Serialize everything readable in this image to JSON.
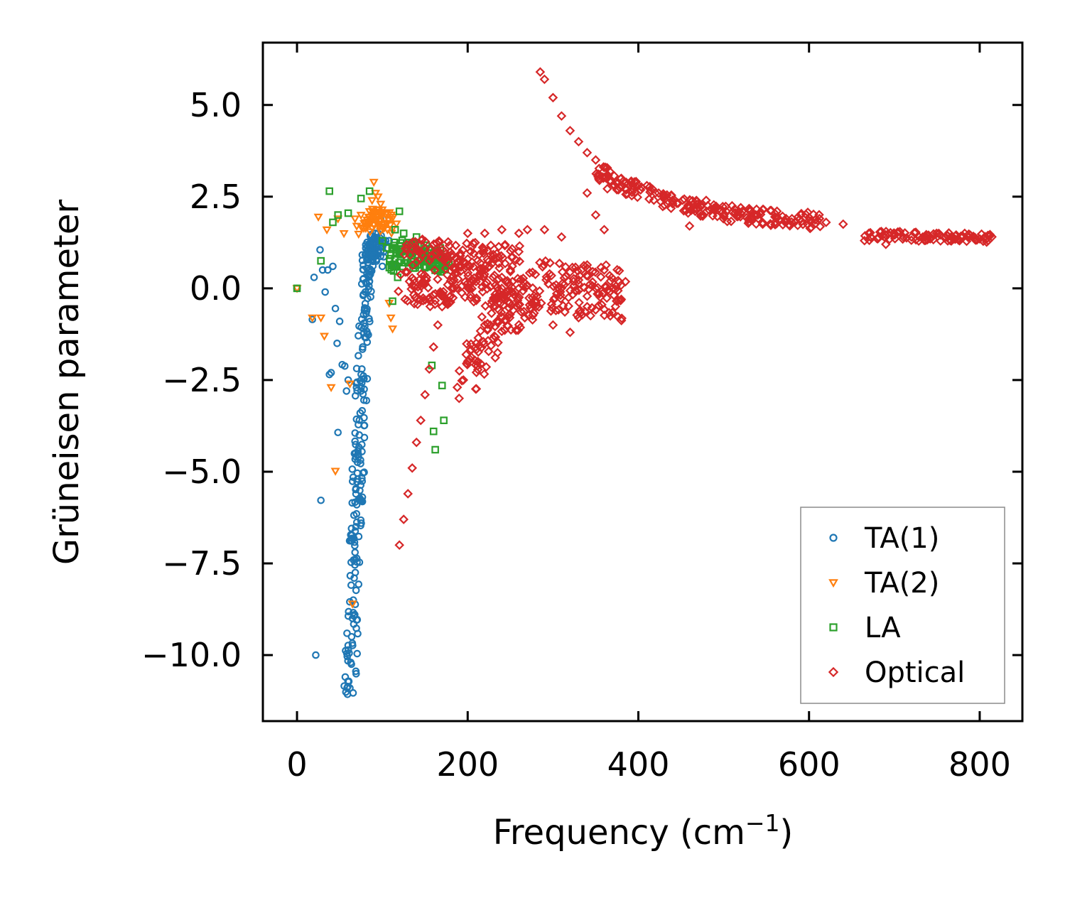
{
  "chart_data": {
    "type": "scatter",
    "title": "",
    "xlabel": "Frequency (cm",
    "xlabel_sup": "−1",
    "xlabel_end": ")",
    "ylabel": "Grüneisen parameter",
    "xlim": [
      -40,
      850
    ],
    "ylim": [
      -11.8,
      6.7
    ],
    "xticks": [
      0,
      200,
      400,
      600,
      800
    ],
    "xtick_labels": [
      "0",
      "200",
      "400",
      "600",
      "800"
    ],
    "yticks": [
      5.0,
      2.5,
      0.0,
      -2.5,
      -5.0,
      -7.5,
      -10.0
    ],
    "ytick_labels": [
      "5.0",
      "2.5",
      "0.0",
      "−2.5",
      "−5.0",
      "−7.5",
      "−10.0"
    ],
    "grid": false,
    "legend_position": "bottom-right",
    "series": [
      {
        "name": "TA(1)",
        "marker": "circle",
        "color": "#1f77b4",
        "points": [
          [
            0,
            0
          ],
          [
            18,
            -0.85
          ],
          [
            20,
            0.3
          ],
          [
            22,
            -10
          ],
          [
            27,
            1.05
          ],
          [
            28,
            -5.78
          ],
          [
            30,
            0.5
          ],
          [
            33,
            -0.1
          ],
          [
            36,
            0.5
          ],
          [
            38,
            -2.35
          ],
          [
            40,
            -2.3
          ],
          [
            42,
            0.6
          ],
          [
            45,
            -0.55
          ],
          [
            47,
            -1.5
          ],
          [
            48,
            -3.93
          ],
          [
            50,
            -0.9
          ],
          [
            53,
            -2.08
          ],
          [
            56,
            -2.12
          ],
          [
            58,
            -2.8
          ],
          [
            60,
            -2.5
          ],
          [
            62,
            -10.9
          ],
          [
            63,
            -10.2
          ],
          [
            64,
            -9.5
          ],
          [
            65,
            -9.0
          ],
          [
            66,
            -8.5
          ],
          [
            67,
            -7.9
          ],
          [
            68,
            -7.2
          ],
          [
            69,
            -6.5
          ],
          [
            70,
            -5.9
          ],
          [
            71,
            -5.2
          ],
          [
            72,
            -4.6
          ],
          [
            73,
            -4.0
          ],
          [
            74,
            -3.4
          ],
          [
            75,
            -2.8
          ],
          [
            76,
            -2.2
          ],
          [
            77,
            -1.6
          ],
          [
            78,
            -1.1
          ],
          [
            79,
            -0.6
          ],
          [
            80,
            -0.1
          ],
          [
            82,
            0.4
          ],
          [
            84,
            0.8
          ],
          [
            86,
            1.0
          ],
          [
            88,
            1.0
          ],
          [
            90,
            0.9
          ],
          [
            92,
            1.5
          ],
          [
            95,
            1.5
          ],
          [
            98,
            1.9
          ],
          [
            100,
            0.6
          ],
          [
            104,
            1.3
          ],
          [
            108,
            1.3
          ],
          [
            112,
            0.6
          ]
        ]
      },
      {
        "name": "TA(2)",
        "marker": "triangle_down",
        "color": "#ff7f0e",
        "points": [
          [
            0,
            0
          ],
          [
            18,
            -0.8
          ],
          [
            25,
            1.95
          ],
          [
            28,
            -0.8
          ],
          [
            32,
            -1.3
          ],
          [
            35,
            1.6
          ],
          [
            40,
            -2.7
          ],
          [
            45,
            -4.98
          ],
          [
            48,
            1.9
          ],
          [
            55,
            1.5
          ],
          [
            62,
            -2.6
          ],
          [
            65,
            -8.6
          ],
          [
            68,
            1.9
          ],
          [
            70,
            1.7
          ],
          [
            75,
            2.0
          ],
          [
            80,
            1.8
          ],
          [
            85,
            2.1
          ],
          [
            88,
            2.4
          ],
          [
            90,
            2.9
          ],
          [
            92,
            2.6
          ],
          [
            95,
            2.5
          ],
          [
            98,
            2.3
          ],
          [
            100,
            2.0
          ],
          [
            103,
            1.9
          ],
          [
            106,
            1.6
          ],
          [
            108,
            -0.4
          ],
          [
            110,
            -0.8
          ],
          [
            112,
            -1.1
          ]
        ]
      },
      {
        "name": "LA",
        "marker": "square",
        "color": "#2ca02c",
        "points": [
          [
            0,
            0
          ],
          [
            28,
            0.75
          ],
          [
            38,
            2.65
          ],
          [
            42,
            1.8
          ],
          [
            48,
            2.0
          ],
          [
            60,
            2.05
          ],
          [
            75,
            2.45
          ],
          [
            85,
            2.65
          ],
          [
            100,
            1.3
          ],
          [
            105,
            1.1
          ],
          [
            110,
            0.9
          ],
          [
            112,
            -0.35
          ],
          [
            115,
            1.6
          ],
          [
            118,
            0.3
          ],
          [
            120,
            2.1
          ],
          [
            125,
            1.5
          ],
          [
            130,
            1.1
          ],
          [
            135,
            0.9
          ],
          [
            140,
            1.4
          ],
          [
            145,
            1.0
          ],
          [
            150,
            0.8
          ],
          [
            155,
            0.9
          ],
          [
            158,
            -2.1
          ],
          [
            160,
            -3.9
          ],
          [
            162,
            -4.4
          ],
          [
            165,
            0.8
          ],
          [
            170,
            -2.65
          ],
          [
            172,
            -3.6
          ],
          [
            175,
            0.7
          ]
        ]
      },
      {
        "name": "Optical",
        "marker": "diamond",
        "color": "#d62728",
        "points": [
          [
            120,
            -7.0
          ],
          [
            125,
            -6.3
          ],
          [
            130,
            -5.6
          ],
          [
            135,
            -4.9
          ],
          [
            140,
            -4.2
          ],
          [
            145,
            -3.6
          ],
          [
            150,
            -2.9
          ],
          [
            155,
            -2.2
          ],
          [
            160,
            -1.6
          ],
          [
            165,
            -1.0
          ],
          [
            170,
            -0.5
          ],
          [
            180,
            0.2
          ],
          [
            190,
            -3.0
          ],
          [
            195,
            -2.5
          ],
          [
            200,
            -2.0
          ],
          [
            210,
            -1.5
          ],
          [
            220,
            -1.0
          ],
          [
            230,
            -0.5
          ],
          [
            240,
            0.0
          ],
          [
            250,
            0.5
          ],
          [
            260,
            1.0
          ],
          [
            270,
            1.6
          ],
          [
            200,
            1.5
          ],
          [
            220,
            1.5
          ],
          [
            240,
            1.6
          ],
          [
            260,
            1.5
          ],
          [
            200,
            0.8
          ],
          [
            220,
            0.5
          ],
          [
            240,
            0.3
          ],
          [
            260,
            0.0
          ],
          [
            280,
            -0.5
          ],
          [
            290,
            1.6
          ],
          [
            300,
            -1.0
          ],
          [
            310,
            1.4
          ],
          [
            320,
            -1.2
          ],
          [
            330,
            -0.8
          ],
          [
            340,
            -0.5
          ],
          [
            350,
            0.0
          ],
          [
            360,
            0.5
          ],
          [
            370,
            0.0
          ],
          [
            380,
            -0.3
          ],
          [
            340,
            2.6
          ],
          [
            350,
            2.0
          ],
          [
            360,
            1.6
          ],
          [
            285,
            5.9
          ],
          [
            290,
            5.7
          ],
          [
            300,
            5.2
          ],
          [
            310,
            4.7
          ],
          [
            320,
            4.3
          ],
          [
            330,
            4.0
          ],
          [
            340,
            3.7
          ],
          [
            350,
            3.5
          ],
          [
            360,
            3.3
          ],
          [
            380,
            3.0
          ],
          [
            400,
            2.8
          ],
          [
            420,
            2.6
          ],
          [
            440,
            2.4
          ],
          [
            460,
            2.2
          ],
          [
            460,
            1.7
          ],
          [
            480,
            2.1
          ],
          [
            500,
            2.0
          ],
          [
            520,
            2.2
          ],
          [
            540,
            2.0
          ],
          [
            560,
            1.95
          ],
          [
            580,
            1.9
          ],
          [
            600,
            1.85
          ],
          [
            620,
            1.8
          ],
          [
            640,
            1.75
          ],
          [
            665,
            1.3
          ],
          [
            670,
            1.5
          ],
          [
            690,
            1.2
          ],
          [
            700,
            1.5
          ],
          [
            720,
            1.4
          ],
          [
            740,
            1.45
          ],
          [
            760,
            1.4
          ],
          [
            780,
            1.4
          ],
          [
            800,
            1.35
          ],
          [
            810,
            1.3
          ]
        ]
      }
    ],
    "clusters": [
      {
        "series": "TA(1)",
        "description": "dense band",
        "center_path": [
          [
            62,
            -11.0
          ],
          [
            66,
            -8.8
          ],
          [
            70,
            -6.0
          ],
          [
            74,
            -3.6
          ],
          [
            78,
            -1.4
          ],
          [
            82,
            0.5
          ],
          [
            88,
            1.2
          ],
          [
            98,
            1.0
          ]
        ],
        "spread_x": 7,
        "spread_y": 0.35,
        "count": 260
      },
      {
        "series": "TA(2)",
        "description": "dense band",
        "center_path": [
          [
            80,
            1.7
          ],
          [
            90,
            2.0
          ],
          [
            100,
            1.9
          ],
          [
            110,
            1.7
          ]
        ],
        "spread_x": 8,
        "spread_y": 0.25,
        "count": 60
      },
      {
        "series": "LA",
        "description": "dense blob",
        "center_path": [
          [
            110,
            0.8
          ],
          [
            125,
            1.0
          ],
          [
            140,
            0.9
          ],
          [
            160,
            0.85
          ],
          [
            175,
            0.75
          ]
        ],
        "spread_x": 8,
        "spread_y": 0.35,
        "count": 110
      },
      {
        "series": "Optical",
        "description": "fan region 1",
        "center_path": [
          [
            130,
            0.5
          ],
          [
            150,
            0.4
          ],
          [
            175,
            0.4
          ],
          [
            200,
            0.5
          ],
          [
            230,
            0.3
          ],
          [
            260,
            0.3
          ]
        ],
        "spread_x": 12,
        "spread_y": 0.9,
        "count": 260
      },
      {
        "series": "Optical",
        "description": "lower wedge",
        "center_path": [
          [
            195,
            -2.5
          ],
          [
            215,
            -1.6
          ],
          [
            240,
            -0.8
          ],
          [
            265,
            -0.2
          ],
          [
            290,
            0.1
          ],
          [
            320,
            -0.1
          ],
          [
            350,
            0.0
          ],
          [
            380,
            -0.2
          ]
        ],
        "spread_x": 10,
        "spread_y": 0.7,
        "count": 240
      },
      {
        "series": "Optical",
        "description": "optical dispersion band",
        "center_path": [
          [
            350,
            3.2
          ],
          [
            380,
            2.8
          ],
          [
            420,
            2.5
          ],
          [
            460,
            2.25
          ],
          [
            500,
            2.05
          ],
          [
            540,
            1.95
          ],
          [
            580,
            1.9
          ],
          [
            620,
            1.8
          ]
        ],
        "spread_x": 10,
        "spread_y": 0.22,
        "count": 200
      },
      {
        "series": "Optical",
        "description": "high frequency branch",
        "center_path": [
          [
            665,
            1.4
          ],
          [
            700,
            1.45
          ],
          [
            740,
            1.4
          ],
          [
            780,
            1.4
          ],
          [
            810,
            1.35
          ]
        ],
        "spread_x": 8,
        "spread_y": 0.12,
        "count": 90
      }
    ]
  }
}
